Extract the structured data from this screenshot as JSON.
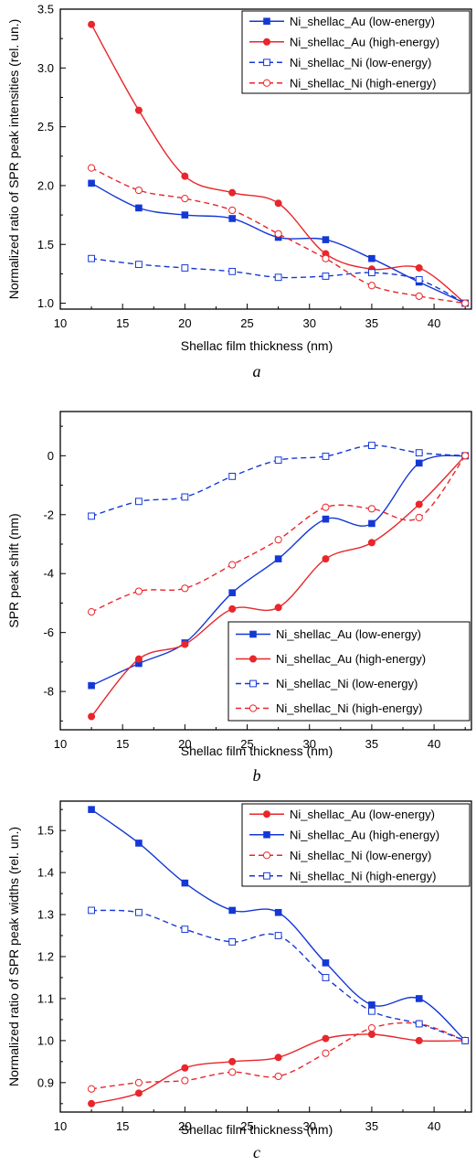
{
  "colors": {
    "red": "#e8262b",
    "blue": "#1438d6",
    "axis": "#000000"
  },
  "chart_data": [
    {
      "type": "line",
      "panel_label": "a",
      "xlabel": "Shellac film thickness (nm)",
      "ylabel": "Normalized ratio of SPR peak intensities (rel. un.)",
      "xlim": [
        10,
        43
      ],
      "ylim": [
        0.95,
        3.5
      ],
      "xticks": [
        10,
        15,
        20,
        25,
        30,
        35,
        40
      ],
      "yticks": [
        1.0,
        1.5,
        2.0,
        2.5,
        3.0,
        3.5
      ],
      "ytick_labels": [
        "1.0",
        "1.5",
        "2.0",
        "2.5",
        "3.0",
        "3.5"
      ],
      "legend_position": "top-right",
      "x": [
        12.5,
        16.3,
        20.0,
        23.8,
        27.5,
        31.3,
        35.0,
        38.8,
        42.5
      ],
      "series": [
        {
          "name": "Ni_shellac_Au (low-energy)",
          "color": "blue",
          "marker": "filled-square",
          "line": "solid",
          "values": [
            2.02,
            1.81,
            1.75,
            1.72,
            1.56,
            1.54,
            1.38,
            1.18,
            1.0
          ]
        },
        {
          "name": "Ni_shellac_Au (high-energy)",
          "color": "red",
          "marker": "filled-circle",
          "line": "solid",
          "values": [
            3.37,
            2.64,
            2.08,
            1.94,
            1.85,
            1.42,
            1.29,
            1.3,
            1.0
          ]
        },
        {
          "name": "Ni_shellac_Ni (low-energy)",
          "color": "blue",
          "marker": "open-square",
          "line": "dashed",
          "values": [
            1.38,
            1.33,
            1.3,
            1.27,
            1.22,
            1.23,
            1.26,
            1.2,
            1.0
          ]
        },
        {
          "name": "Ni_shellac_Ni (high-energy)",
          "color": "red",
          "marker": "open-circle",
          "line": "dashed",
          "values": [
            2.15,
            1.96,
            1.89,
            1.79,
            1.59,
            1.38,
            1.15,
            1.06,
            1.0
          ]
        }
      ]
    },
    {
      "type": "line",
      "panel_label": "b",
      "xlabel": "Shellac film thickness (nm)",
      "ylabel": "SPR peak shift (nm)",
      "xlim": [
        10,
        43
      ],
      "ylim": [
        -9.3,
        1.5
      ],
      "xticks": [
        10,
        15,
        20,
        25,
        30,
        35,
        40
      ],
      "yticks": [
        -8,
        -6,
        -4,
        -2,
        0
      ],
      "ytick_labels": [
        "-8",
        "-6",
        "-4",
        "-2",
        "0"
      ],
      "legend_position": "bottom-right",
      "x": [
        12.5,
        16.3,
        20.0,
        23.8,
        27.5,
        31.3,
        35.0,
        38.8,
        42.5
      ],
      "series": [
        {
          "name": "Ni_shellac_Au (low-energy)",
          "color": "blue",
          "marker": "filled-square",
          "line": "solid",
          "values": [
            -7.8,
            -7.05,
            -6.35,
            -4.65,
            -3.5,
            -2.15,
            -2.3,
            -0.25,
            0.0
          ]
        },
        {
          "name": "Ni_shellac_Au (high-energy)",
          "color": "red",
          "marker": "filled-circle",
          "line": "solid",
          "values": [
            -8.85,
            -6.9,
            -6.4,
            -5.2,
            -5.15,
            -3.5,
            -2.95,
            -1.65,
            0.0
          ]
        },
        {
          "name": "Ni_shellac_Ni (low-energy)",
          "color": "blue",
          "marker": "open-square",
          "line": "dashed",
          "values": [
            -2.05,
            -1.55,
            -1.4,
            -0.7,
            -0.15,
            -0.02,
            0.35,
            0.1,
            0.0
          ]
        },
        {
          "name": "Ni_shellac_Ni (high-energy)",
          "color": "red",
          "marker": "open-circle",
          "line": "dashed",
          "values": [
            -5.3,
            -4.6,
            -4.5,
            -3.7,
            -2.85,
            -1.75,
            -1.8,
            -2.1,
            0.0
          ]
        }
      ]
    },
    {
      "type": "line",
      "panel_label": "c",
      "xlabel": "Shellac film thickness (nm)",
      "ylabel": "Normalized ratio of SPR peak widths (rel. un.)",
      "xlim": [
        10,
        43
      ],
      "ylim": [
        0.83,
        1.57
      ],
      "xticks": [
        10,
        15,
        20,
        25,
        30,
        35,
        40
      ],
      "yticks": [
        0.9,
        1.0,
        1.1,
        1.2,
        1.3,
        1.4,
        1.5
      ],
      "ytick_labels": [
        "0.9",
        "1.0",
        "1.1",
        "1.2",
        "1.3",
        "1.4",
        "1.5"
      ],
      "legend_position": "top-right",
      "x": [
        12.5,
        16.3,
        20.0,
        23.8,
        27.5,
        31.3,
        35.0,
        38.8,
        42.5
      ],
      "series": [
        {
          "name": "Ni_shellac_Au (low-energy)",
          "color": "red",
          "marker": "filled-circle",
          "line": "solid",
          "values": [
            0.85,
            0.875,
            0.935,
            0.95,
            0.96,
            1.005,
            1.015,
            1.0,
            1.0
          ]
        },
        {
          "name": "Ni_shellac_Au (high-energy)",
          "color": "blue",
          "marker": "filled-square",
          "line": "solid",
          "values": [
            1.55,
            1.47,
            1.375,
            1.31,
            1.305,
            1.185,
            1.085,
            1.1,
            1.0
          ]
        },
        {
          "name": "Ni_shellac_Ni (low-energy)",
          "color": "red",
          "marker": "open-circle",
          "line": "dashed",
          "values": [
            0.885,
            0.9,
            0.905,
            0.925,
            0.915,
            0.97,
            1.03,
            1.04,
            1.0
          ]
        },
        {
          "name": "Ni_shellac_Ni (high-energy)",
          "color": "blue",
          "marker": "open-square",
          "line": "dashed",
          "values": [
            1.31,
            1.305,
            1.265,
            1.235,
            1.25,
            1.15,
            1.07,
            1.04,
            1.0
          ]
        }
      ]
    }
  ]
}
